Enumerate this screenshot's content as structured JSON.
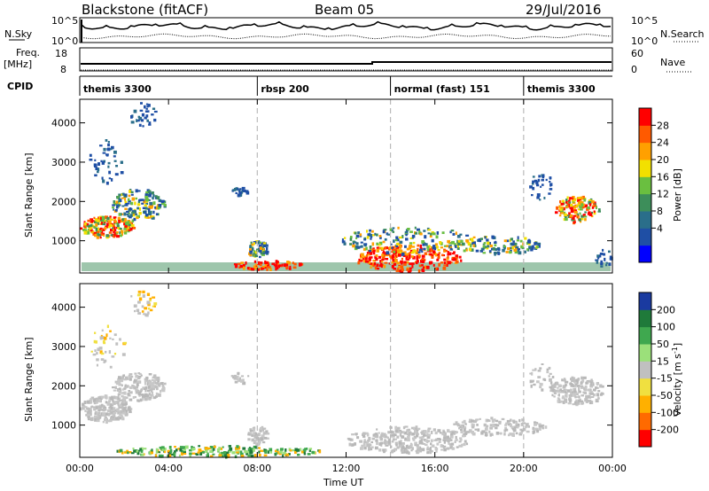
{
  "header": {
    "radar": "Blackstone (fitACF)",
    "beam": "Beam 05",
    "date": "29/Jul/2016"
  },
  "top_panels": {
    "nsky_label": "N.Sky",
    "nsky_ticks": [
      "10^5",
      "10^0"
    ],
    "nsearch_label": "N.Search",
    "nsearch_ticks": [
      "10^5",
      "10^0"
    ],
    "freq_label_line1": "Freq.",
    "freq_label_line2": "[MHz]",
    "freq_ticks": [
      "18",
      "8"
    ],
    "nave_label": "Nave",
    "nave_ticks": [
      "60",
      "0"
    ],
    "cpid_label": "CPID",
    "cpid_segments": [
      {
        "name": "themis 3300",
        "start_hour": 0
      },
      {
        "name": "rbsp 200",
        "start_hour": 8
      },
      {
        "name": "normal (fast) 151",
        "start_hour": 14
      },
      {
        "name": "themis 3300",
        "start_hour": 20
      }
    ]
  },
  "chart_data": [
    {
      "type": "heatmap",
      "parameter": "Power",
      "ylabel": "Slant Range [km]",
      "colorbar_label": "Power [dB]",
      "colorbar_ticks": [
        "28",
        "24",
        "20",
        "16",
        "12",
        "8",
        "4"
      ],
      "colorbar_colors": [
        "#0000ff",
        "#1f4fa5",
        "#2a6e8a",
        "#3d8e5a",
        "#6abf40",
        "#f2e000",
        "#ffa000",
        "#ff5a00",
        "#ff0000"
      ],
      "x_ticks": [
        "00:00",
        "04:00",
        "08:00",
        "12:00",
        "16:00",
        "20:00",
        "00:00"
      ],
      "xlim_hours": [
        0,
        24
      ],
      "y_ticks": [
        "1000",
        "2000",
        "3000",
        "4000"
      ],
      "ylim_km": [
        180,
        4600
      ]
    },
    {
      "type": "heatmap",
      "parameter": "Velocity",
      "ylabel": "Slant Range [km]",
      "colorbar_label": "Velocity [m s",
      "colorbar_label_sup": "-1",
      "colorbar_label_tail": "]",
      "colorbar_ticks": [
        "200",
        "100",
        "50",
        "15",
        "-15",
        "-50",
        "-100",
        "-200"
      ],
      "colorbar_colors": [
        "#ff0000",
        "#ff6a00",
        "#ffb000",
        "#f0e040",
        "#c0c0c0",
        "#9be07a",
        "#3fa84f",
        "#1f7a3a",
        "#1a3aa0"
      ],
      "x_ticks": [
        "00:00",
        "04:00",
        "08:00",
        "12:00",
        "16:00",
        "20:00",
        "00:00"
      ],
      "xlabel": "Time UT",
      "xlim_hours": [
        0,
        24
      ],
      "y_ticks": [
        "1000",
        "2000",
        "3000",
        "4000"
      ],
      "ylim_km": [
        180,
        4600
      ]
    }
  ]
}
